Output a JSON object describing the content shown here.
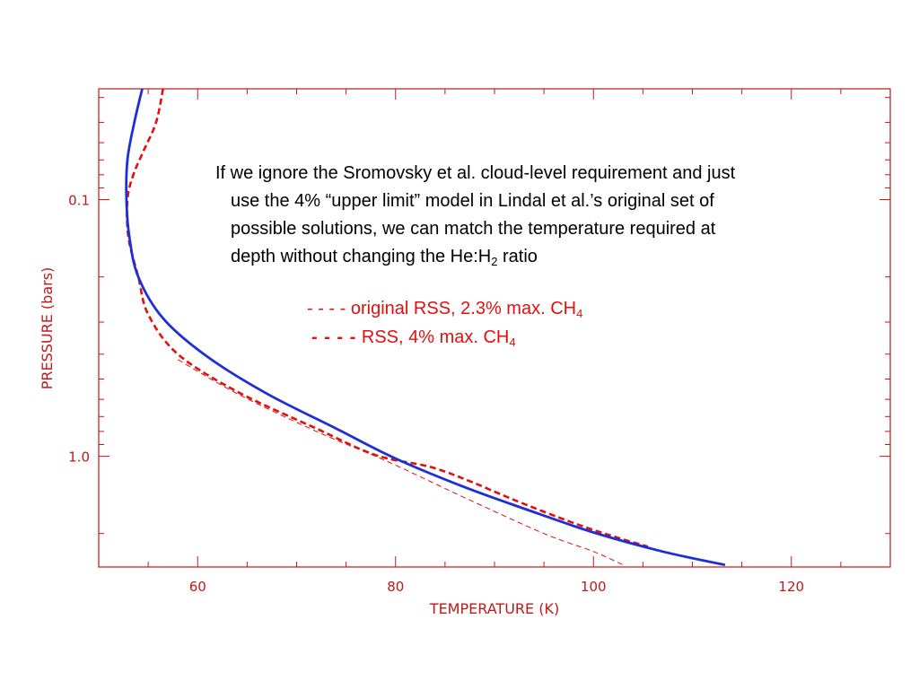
{
  "colors": {
    "axis": "#c01818",
    "blue": "#1d2fd6",
    "red": "#e01010"
  },
  "note": {
    "line1": "If we ignore the Sromovsky et al. cloud-level requirement and just",
    "line2": "use the 4% “upper limit” model in Lindal et al.’s original set of",
    "line3": "possible solutions, we can match the temperature required at",
    "line4_pre": "depth without changing the He:H",
    "line4_sub": "2",
    "line4_post": " ratio"
  },
  "legend": [
    {
      "marker": "- - - -",
      "text": "original RSS, 2.3% max. CH",
      "sub": "4"
    },
    {
      "marker": "- - - -",
      "text": "RSS, 4% max. CH",
      "sub": "4"
    }
  ],
  "chart_data": {
    "type": "line",
    "xlabel": "TEMPERATURE (K)",
    "ylabel": "PRESSURE (bars)",
    "xlim": [
      50,
      130
    ],
    "ylim": [
      2.7,
      0.037
    ],
    "yscale": "log",
    "xticks": [
      60,
      80,
      100,
      120
    ],
    "xtick_labels": [
      "60",
      "80",
      "100",
      "120"
    ],
    "yticks": [
      0.1,
      1.0
    ],
    "ytick_labels": [
      "0.1",
      "1.0"
    ],
    "series": [
      {
        "style": "solid-blue",
        "color": "#1d2fd6",
        "points": [
          [
            54.4,
            0.037
          ],
          [
            53.6,
            0.05
          ],
          [
            52.9,
            0.07
          ],
          [
            52.8,
            0.1
          ],
          [
            53.1,
            0.14
          ],
          [
            54.0,
            0.2
          ],
          [
            56.5,
            0.29
          ],
          [
            61.0,
            0.41
          ],
          [
            67.0,
            0.57
          ],
          [
            74.0,
            0.78
          ],
          [
            80.0,
            1.02
          ],
          [
            87.0,
            1.32
          ],
          [
            93.0,
            1.6
          ],
          [
            100.0,
            1.98
          ],
          [
            107.0,
            2.35
          ],
          [
            113.3,
            2.65
          ]
        ]
      },
      {
        "style": "dashed-bold-red",
        "color": "#e01010",
        "points": [
          [
            56.5,
            0.037
          ],
          [
            55.8,
            0.05
          ],
          [
            54.5,
            0.065
          ],
          [
            53.5,
            0.08
          ],
          [
            52.9,
            0.1
          ],
          [
            53.0,
            0.14
          ],
          [
            54.0,
            0.2
          ],
          [
            55.0,
            0.28
          ],
          [
            58.0,
            0.4
          ],
          [
            64.0,
            0.56
          ],
          [
            72.0,
            0.78
          ],
          [
            78.0,
            0.99
          ],
          [
            83.5,
            1.1
          ],
          [
            87.5,
            1.25
          ],
          [
            92.0,
            1.48
          ],
          [
            98.0,
            1.82
          ],
          [
            102.0,
            2.05
          ],
          [
            105.5,
            2.25
          ]
        ]
      },
      {
        "style": "dashed-thin-red",
        "color": "#e01010",
        "points": [
          [
            58.0,
            0.42
          ],
          [
            64.0,
            0.57
          ],
          [
            72.0,
            0.8
          ],
          [
            79.0,
            1.04
          ],
          [
            87.0,
            1.45
          ],
          [
            95.0,
            2.0
          ],
          [
            100.0,
            2.35
          ],
          [
            103.0,
            2.65
          ]
        ]
      }
    ]
  }
}
